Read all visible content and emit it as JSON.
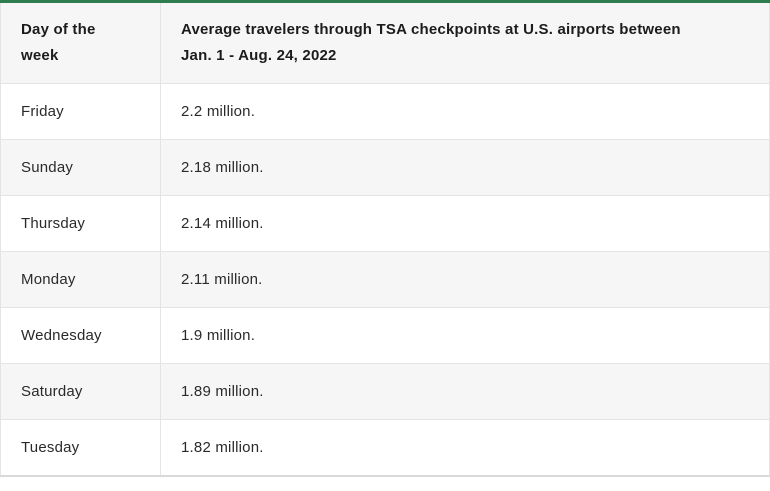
{
  "colors": {
    "accent_green": "#2e7d4f",
    "header_bg": "#f6f6f6",
    "row_alt_bg": "#f6f6f6",
    "border": "#e4e4e4",
    "bottom_border": "#d9d9d9",
    "header_text": "#1c1c1c",
    "body_text": "#2a2a2a"
  },
  "table": {
    "header": {
      "col1": {
        "line1": "Day of the",
        "line2": "week"
      },
      "col2": {
        "line1": "Average travelers through TSA checkpoints at U.S. airports between",
        "line2": "Jan. 1 - Aug. 24, 2022"
      }
    },
    "rows": [
      {
        "day": "Friday",
        "value": "2.2 million."
      },
      {
        "day": "Sunday",
        "value": "2.18 million."
      },
      {
        "day": "Thursday",
        "value": "2.14 million."
      },
      {
        "day": "Monday",
        "value": "2.11 million."
      },
      {
        "day": "Wednesday",
        "value": "1.9 million."
      },
      {
        "day": "Saturday",
        "value": "1.89 million."
      },
      {
        "day": "Tuesday",
        "value": "1.82 million."
      }
    ]
  },
  "chart_data": {
    "type": "table",
    "title": "Average travelers through TSA checkpoints at U.S. airports between Jan. 1 - Aug. 24, 2022",
    "columns": [
      "Day of the week",
      "Average travelers through TSA checkpoints at U.S. airports between Jan. 1 - Aug. 24, 2022"
    ],
    "rows": [
      [
        "Friday",
        "2.2 million."
      ],
      [
        "Sunday",
        "2.18 million."
      ],
      [
        "Thursday",
        "2.14 million."
      ],
      [
        "Monday",
        "2.11 million."
      ],
      [
        "Wednesday",
        "1.9 million."
      ],
      [
        "Saturday",
        "1.89 million."
      ],
      [
        "Tuesday",
        "1.82 million."
      ]
    ],
    "values_millions": [
      2.2,
      2.18,
      2.14,
      2.11,
      1.9,
      1.89,
      1.82
    ]
  }
}
